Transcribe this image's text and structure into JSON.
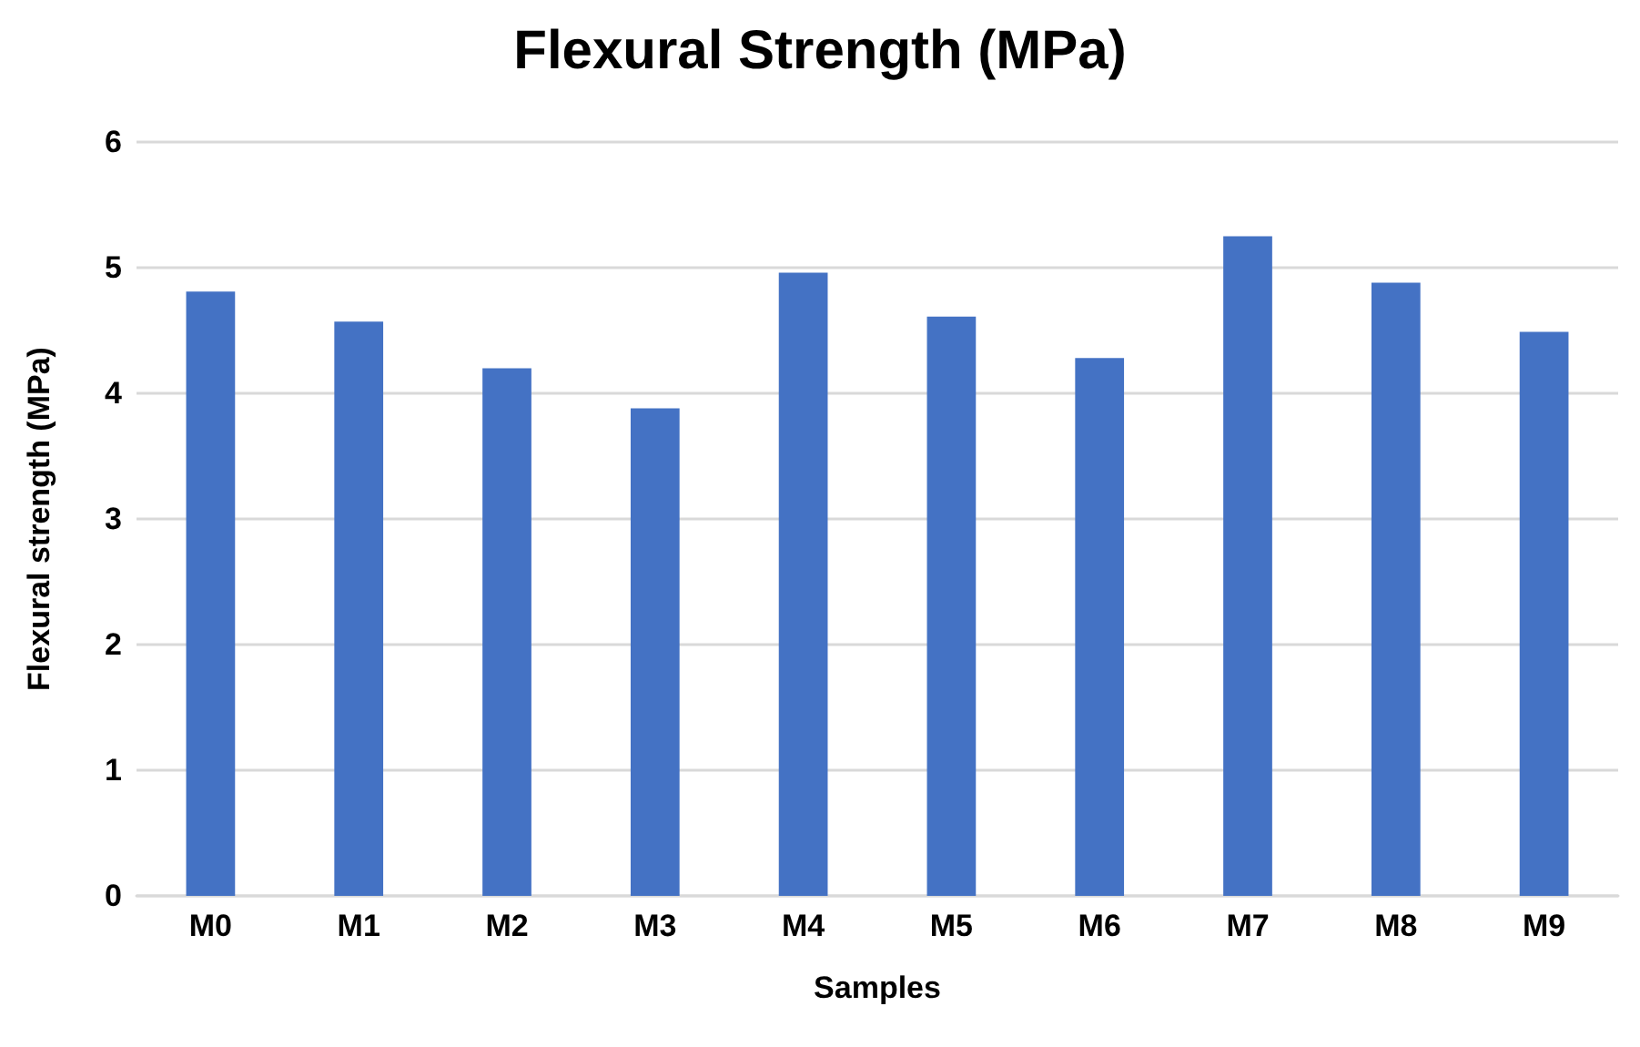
{
  "chart_data": {
    "type": "bar",
    "title": "Flexural Strength (MPa)",
    "xlabel": "Samples",
    "ylabel": "Flexural strength (MPa)",
    "categories": [
      "M0",
      "M1",
      "M2",
      "M3",
      "M4",
      "M5",
      "M6",
      "M7",
      "M8",
      "M9"
    ],
    "values": [
      4.81,
      4.57,
      4.2,
      3.88,
      4.96,
      4.61,
      4.28,
      5.25,
      4.88,
      4.49
    ],
    "color": "#4472c4",
    "ylim": [
      0,
      6
    ],
    "yticks": [
      0,
      1,
      2,
      3,
      4,
      5,
      6
    ],
    "grid": "y"
  }
}
